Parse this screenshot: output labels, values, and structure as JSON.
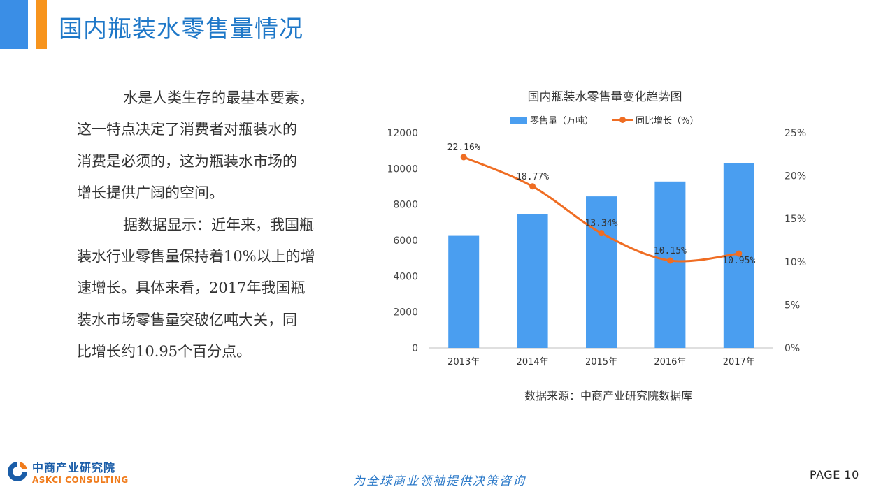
{
  "header": {
    "title": "国内瓶装水零售量情况"
  },
  "body": {
    "para1_lines": [
      "水是人类生存的最基本要素，",
      "这一特点决定了消费者对瓶装水的",
      "消费是必须的，这为瓶装水市场的",
      "增长提供广阔的空间。"
    ],
    "para2_lines": [
      "据数据显示：近年来，我国瓶",
      "装水行业零售量保持着10%以上的增",
      "速增长。具体来看，2017年我国瓶",
      "装水市场零售量突破亿吨大关，同",
      "比增长约10.95个百分点。"
    ]
  },
  "chart_data": {
    "type": "bar",
    "title": "国内瓶装水零售量变化趋势图",
    "categories": [
      "2013年",
      "2014年",
      "2015年",
      "2016年",
      "2017年"
    ],
    "series": [
      {
        "name": "零售量（万吨）",
        "type": "bar",
        "axis": "left",
        "values": [
          6250,
          7450,
          8450,
          9280,
          10300
        ],
        "color": "#4a9ef0"
      },
      {
        "name": "同比增长（%）",
        "type": "line",
        "axis": "right",
        "values": [
          22.16,
          18.77,
          13.34,
          10.15,
          10.95
        ],
        "labels": [
          "22.16%",
          "18.77%",
          "13.34%",
          "10.15%",
          "10.95%"
        ],
        "color": "#ef6d23"
      }
    ],
    "y_left": {
      "ticks": [
        "0",
        "2000",
        "4000",
        "6000",
        "8000",
        "10000",
        "12000"
      ],
      "range": [
        0,
        12000
      ]
    },
    "y_right": {
      "ticks": [
        "0%",
        "5%",
        "10%",
        "15%",
        "20%",
        "25%"
      ],
      "range": [
        0,
        25
      ]
    },
    "legend_position": "top-center",
    "grid": false
  },
  "source": "数据来源：中商产业研究院数据库",
  "footer": {
    "logo_cn": "中商产业研究院",
    "logo_en": "ASKCI CONSULTING",
    "tagline": "为全球商业领袖提供决策咨询",
    "page": "PAGE 10"
  }
}
